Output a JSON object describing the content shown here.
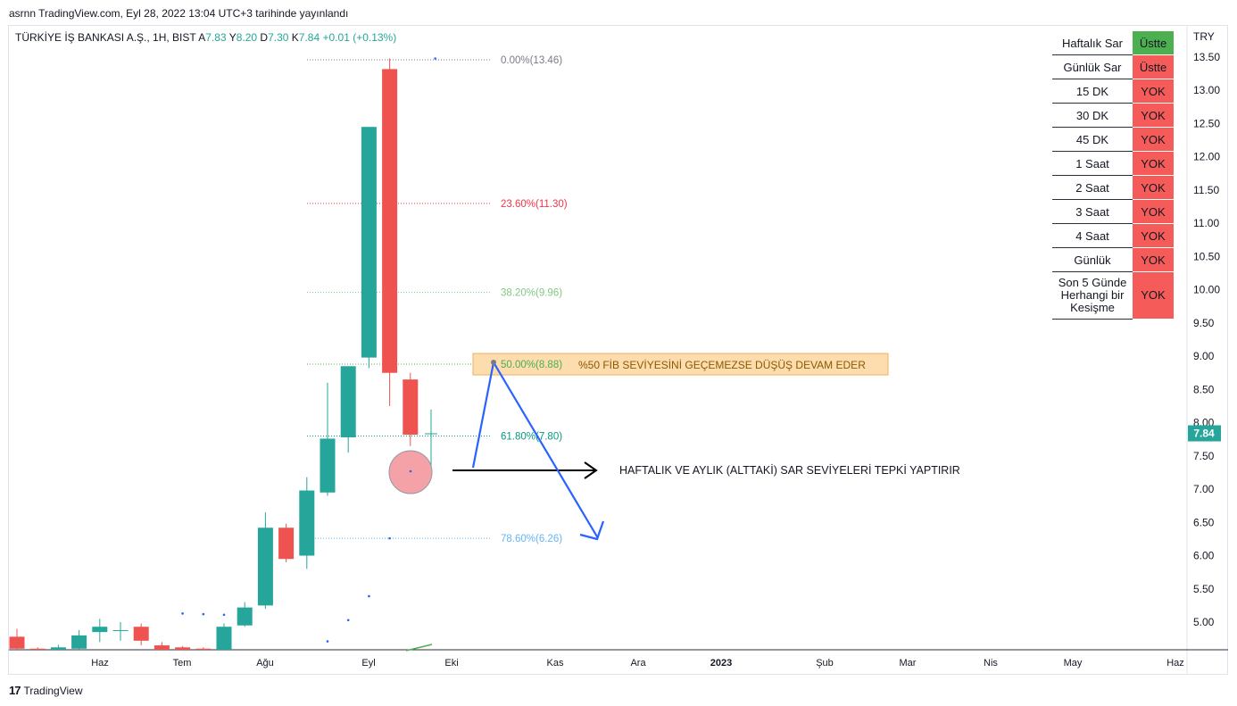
{
  "caption": "asrnn TradingView.com, Eyl 28, 2022 13:04 UTC+3 tarihinde yayınlandı",
  "footer": {
    "brand": "TradingView"
  },
  "colors": {
    "up": "#26a69a",
    "down": "#ef5350",
    "blue": "#2962ff",
    "green_cell": "#4caf50",
    "red_cell": "#f55b58"
  },
  "legend": {
    "symbol": "TÜRKİYE İŞ BANKASI A.Ş., 1H, BIST",
    "open_label": "A",
    "open": "7.83",
    "high_label": "Y",
    "high": "8.20",
    "low_label": "D",
    "low": "7.30",
    "close_label": "K",
    "close": "7.84",
    "change": "+0.01 (+0.13%)"
  },
  "status_table": {
    "rows": [
      {
        "label": "Haftalık Sar",
        "value": "Üstte",
        "state": "green"
      },
      {
        "label": "Günlük Sar",
        "value": "Üstte",
        "state": "red"
      },
      {
        "label": "15 DK",
        "value": "YOK",
        "state": "red"
      },
      {
        "label": "30 DK",
        "value": "YOK",
        "state": "red"
      },
      {
        "label": "45 DK",
        "value": "YOK",
        "state": "red"
      },
      {
        "label": "1 Saat",
        "value": "YOK",
        "state": "red"
      },
      {
        "label": "2 Saat",
        "value": "YOK",
        "state": "red"
      },
      {
        "label": "3 Saat",
        "value": "YOK",
        "state": "red"
      },
      {
        "label": "4 Saat",
        "value": "YOK",
        "state": "red"
      },
      {
        "label": "Günlük",
        "value": "YOK",
        "state": "red"
      },
      {
        "label": "Son 5 Günde Herhangi bir Kesişme",
        "value": "YOK",
        "state": "red"
      }
    ]
  },
  "chart_data": {
    "type": "candlestick",
    "currency": "TRY",
    "last_price": "7.84",
    "ylim": [
      4.6,
      13.7
    ],
    "y_ticks": [
      5.0,
      5.5,
      6.0,
      6.5,
      7.0,
      7.5,
      8.0,
      8.5,
      9.0,
      9.5,
      10.0,
      10.5,
      11.0,
      11.5,
      12.0,
      12.5,
      13.0,
      13.5
    ],
    "x_ticks": [
      "Haz",
      "Tem",
      "Ağu",
      "Eyl",
      "Eki",
      "Kas",
      "Ara",
      "2023",
      "Şub",
      "Mar",
      "Nis",
      "May",
      "Haz"
    ],
    "candles": [
      {
        "o": 4.78,
        "h": 4.9,
        "l": 4.55,
        "c": 4.6
      },
      {
        "o": 4.6,
        "h": 4.62,
        "l": 4.55,
        "c": 4.56
      },
      {
        "o": 4.58,
        "h": 4.66,
        "l": 4.55,
        "c": 4.62
      },
      {
        "o": 4.6,
        "h": 4.88,
        "l": 4.55,
        "c": 4.8
      },
      {
        "o": 4.85,
        "h": 5.05,
        "l": 4.7,
        "c": 4.93
      },
      {
        "o": 4.88,
        "h": 5.0,
        "l": 4.72,
        "c": 4.88
      },
      {
        "o": 4.93,
        "h": 4.98,
        "l": 4.65,
        "c": 4.72
      },
      {
        "o": 4.65,
        "h": 4.7,
        "l": 4.5,
        "c": 4.55
      },
      {
        "o": 4.62,
        "h": 4.64,
        "l": 4.52,
        "c": 4.58
      },
      {
        "o": 4.6,
        "h": 4.62,
        "l": 4.52,
        "c": 4.56
      },
      {
        "o": 4.55,
        "h": 4.98,
        "l": 4.52,
        "c": 4.93
      },
      {
        "o": 4.95,
        "h": 5.3,
        "l": 4.93,
        "c": 5.22
      },
      {
        "o": 5.25,
        "h": 6.65,
        "l": 5.2,
        "c": 6.42
      },
      {
        "o": 6.42,
        "h": 6.48,
        "l": 5.9,
        "c": 5.95
      },
      {
        "o": 6.0,
        "h": 7.18,
        "l": 5.8,
        "c": 6.98
      },
      {
        "o": 6.95,
        "h": 8.6,
        "l": 6.9,
        "c": 7.76
      },
      {
        "o": 7.78,
        "h": 8.85,
        "l": 7.55,
        "c": 8.85
      },
      {
        "o": 8.98,
        "h": 12.45,
        "l": 8.82,
        "c": 12.45
      },
      {
        "o": 13.32,
        "h": 13.48,
        "l": 8.25,
        "c": 8.75
      },
      {
        "o": 8.65,
        "h": 8.75,
        "l": 7.65,
        "c": 7.82
      },
      {
        "o": 7.83,
        "h": 8.2,
        "l": 7.3,
        "c": 7.84
      }
    ],
    "sar_dots": [
      {
        "i": 8,
        "v": 5.13
      },
      {
        "i": 9,
        "v": 5.12
      },
      {
        "i": 10,
        "v": 5.11
      },
      {
        "i": 15,
        "v": 4.71
      },
      {
        "i": 16,
        "v": 5.03
      },
      {
        "i": 17,
        "v": 5.39
      },
      {
        "i": 18,
        "v": 6.26
      },
      {
        "i": 20,
        "v": 7.27
      },
      {
        "i": 20.2,
        "v": 13.48
      }
    ],
    "fib_levels": [
      {
        "label": "0.00%(13.46)",
        "price": 13.46,
        "color": "#787b86"
      },
      {
        "label": "23.60%(11.30)",
        "price": 11.3,
        "color": "#f23645"
      },
      {
        "label": "38.20%(9.96)",
        "price": 9.96,
        "color": "#81c784"
      },
      {
        "label": "50.00%(8.88)",
        "price": 8.88,
        "color": "#4caf50"
      },
      {
        "label": "61.80%(7.80)",
        "price": 7.8,
        "color": "#089981"
      },
      {
        "label": "78.60%(6.26)",
        "price": 6.26,
        "color": "#64b5f6"
      }
    ],
    "annotations": {
      "fib_note": "%50 FİB SEVİYESİNİ GEÇEMEZSE DÜŞÜŞ DEVAM EDER",
      "sar_note": "HAFTALIK VE AYLIK (ALTTAKİ) SAR SEVİYELERİ TEPKİ  YAPTIRIR"
    }
  }
}
